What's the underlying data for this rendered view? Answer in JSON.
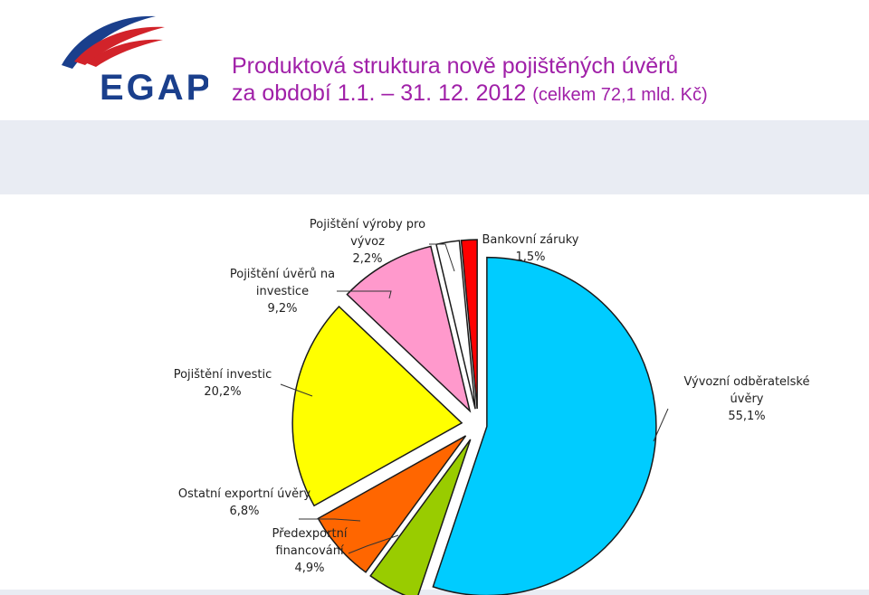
{
  "header": {
    "logo_text": "EGAP",
    "title_line1": "Produktová struktura nově pojištěných úvěrů",
    "title_line2": "za období 1.1. – 31. 12. 2012",
    "title_note": "(celkem 72,1 mld. Kč)"
  },
  "colors": {
    "title": "#a020a8",
    "logo_blue": "#1a3f8c",
    "logo_red": "#d2232a"
  },
  "chart_data": {
    "type": "pie",
    "title": "",
    "start_angle_deg": 0,
    "direction": "clockwise",
    "exploded": true,
    "slices": [
      {
        "label_lines": [
          "Vývozní odběratelské",
          "úvěry"
        ],
        "value_text": "55,1%",
        "value": 55.1,
        "color": "#00ccff"
      },
      {
        "label_lines": [
          "Předexportní",
          "financování"
        ],
        "value_text": "4,9%",
        "value": 4.9,
        "color": "#99cc00"
      },
      {
        "label_lines": [
          "Ostatní exportní úvěry"
        ],
        "value_text": "6,8%",
        "value": 6.8,
        "color": "#ff6600"
      },
      {
        "label_lines": [
          "Pojištění investic"
        ],
        "value_text": "20,2%",
        "value": 20.2,
        "color": "#ffff00"
      },
      {
        "label_lines": [
          "Pojištění úvěrů na",
          "investice"
        ],
        "value_text": "9,2%",
        "value": 9.2,
        "color": "#ff99cc"
      },
      {
        "label_lines": [
          "Pojištění výroby pro",
          "vývoz"
        ],
        "value_text": "2,2%",
        "value": 2.2,
        "color": "#ffffff"
      },
      {
        "label_lines": [
          "Bankovní záruky"
        ],
        "value_text": "1,5%",
        "value": 1.5,
        "color": "#ff0000"
      }
    ]
  }
}
